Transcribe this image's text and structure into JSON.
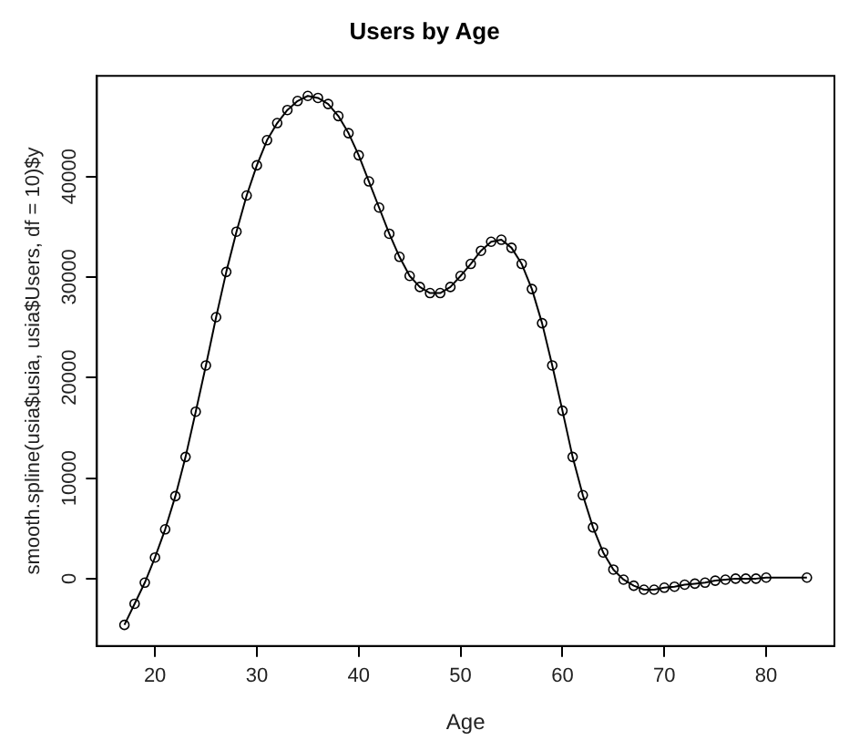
{
  "chart_data": {
    "type": "line",
    "title": "Users by Age",
    "xlabel": "Age",
    "ylabel": "smooth.spline(usia$usia, usia$Users, df = 10)$y",
    "x": [
      17,
      18,
      19,
      20,
      21,
      22,
      23,
      24,
      25,
      26,
      27,
      28,
      29,
      30,
      31,
      32,
      33,
      34,
      35,
      36,
      37,
      38,
      39,
      40,
      41,
      42,
      43,
      44,
      45,
      46,
      47,
      48,
      49,
      50,
      51,
      52,
      53,
      54,
      55,
      56,
      57,
      58,
      59,
      60,
      61,
      62,
      63,
      64,
      65,
      66,
      67,
      68,
      69,
      70,
      71,
      72,
      73,
      74,
      75,
      76,
      77,
      78,
      79,
      80,
      84
    ],
    "series": [
      {
        "color": "#000000",
        "values": [
          -4600,
          -2500,
          -400,
          2100,
          4900,
          8200,
          12100,
          16600,
          21200,
          26000,
          30500,
          34500,
          38100,
          41100,
          43600,
          45300,
          46600,
          47500,
          48000,
          47800,
          47200,
          46000,
          44300,
          42100,
          39500,
          36900,
          34300,
          32000,
          30100,
          29000,
          28400,
          28400,
          29000,
          30100,
          31300,
          32600,
          33500,
          33700,
          32900,
          31300,
          28800,
          25400,
          21200,
          16700,
          12100,
          8300,
          5100,
          2600,
          900,
          -100,
          -700,
          -1100,
          -1100,
          -900,
          -800,
          -600,
          -500,
          -400,
          -200,
          -100,
          0,
          0,
          0,
          100,
          100
        ]
      }
    ],
    "xlim": [
      14.3,
      86.7
    ],
    "xticks": [
      20,
      30,
      40,
      50,
      60,
      70,
      80
    ],
    "ylim": [
      -6700,
      50000
    ],
    "yticks": [
      0,
      10000,
      20000,
      30000,
      40000
    ],
    "marker": "circle",
    "line_style": "solid",
    "grid": false,
    "legend": false
  }
}
